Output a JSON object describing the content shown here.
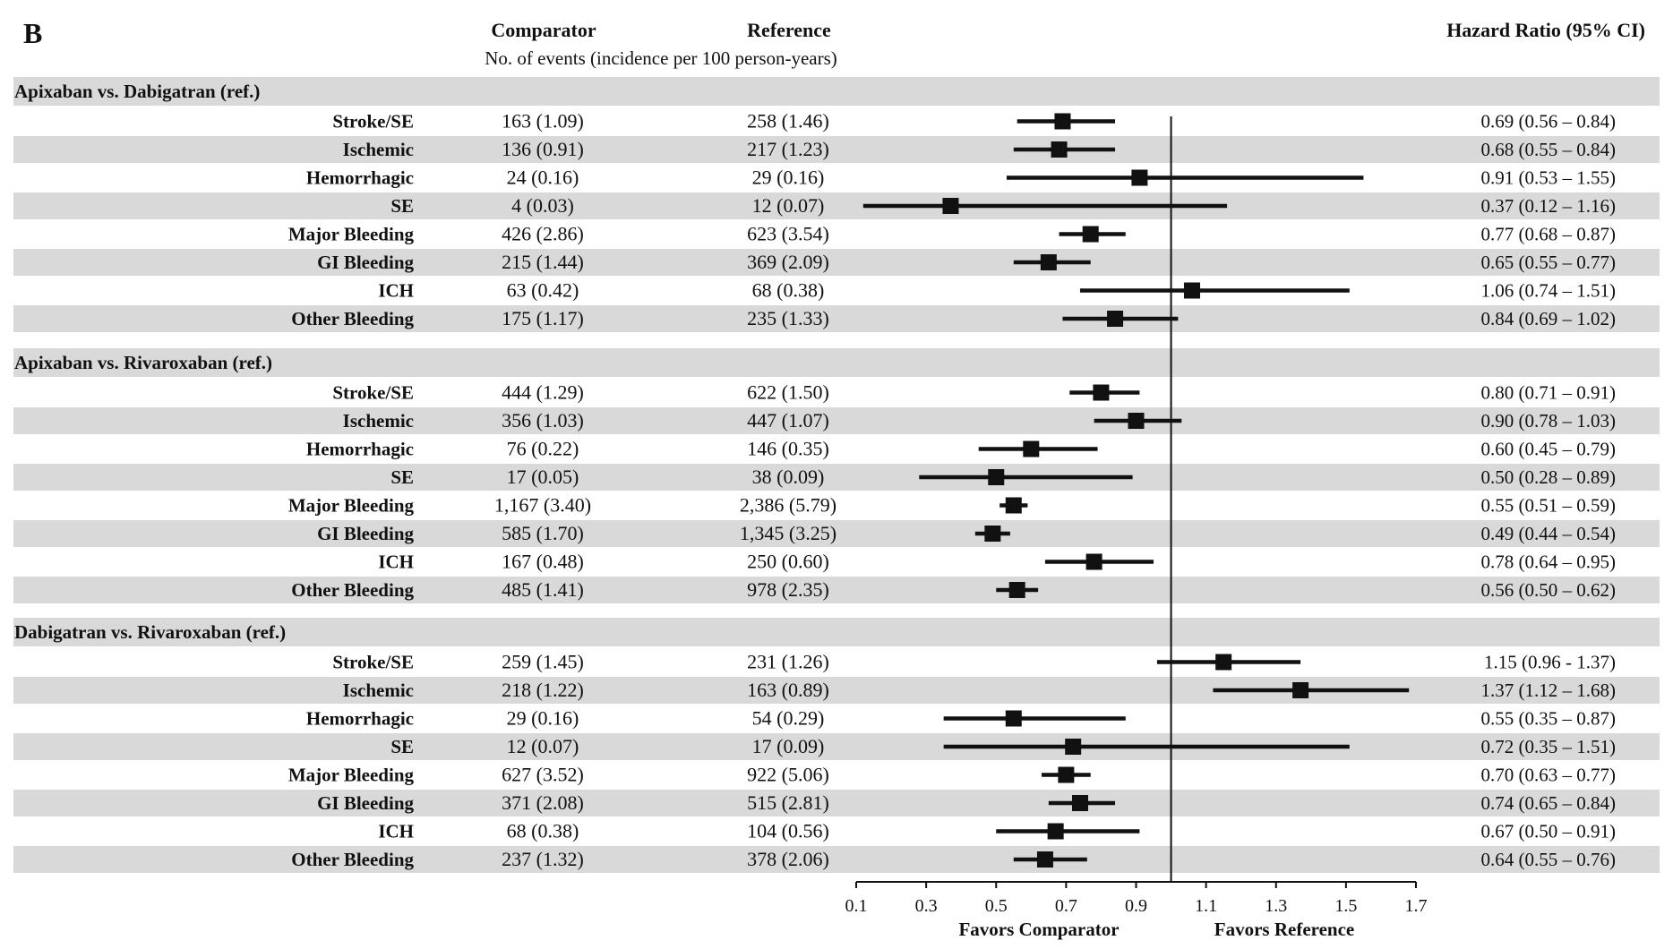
{
  "panel_label": "B",
  "headers": {
    "comparator": "Comparator",
    "reference": "Reference",
    "subheader": "No. of events (incidence per 100 person-years)",
    "hr": "Hazard Ratio (95% CI)"
  },
  "colors": {
    "band": "#d9d9d9",
    "ink": "#111111"
  },
  "chart_data": {
    "type": "forest",
    "xlim": [
      0.1,
      1.7
    ],
    "reference_line": 1.0,
    "ticks": [
      "0.1",
      "0.3",
      "0.5",
      "0.7",
      "0.9",
      "1.1",
      "1.3",
      "1.5",
      "1.7"
    ],
    "tick_values": [
      0.1,
      0.3,
      0.5,
      0.7,
      0.9,
      1.1,
      1.3,
      1.5,
      1.7
    ],
    "xlabel_left": "Favors Comparator",
    "xlabel_right": "Favors Reference",
    "groups": [
      {
        "title": "Apixaban vs. Dabigatran (ref.)",
        "rows": [
          {
            "label": "Stroke/SE",
            "comp": "163 (1.09)",
            "ref": "258 (1.46)",
            "hr_text": "0.69 (0.56 – 0.84)",
            "hr": 0.69,
            "lo": 0.56,
            "hi": 0.84
          },
          {
            "label": "Ischemic",
            "comp": "136 (0.91)",
            "ref": "217 (1.23)",
            "hr_text": "0.68 (0.55 – 0.84)",
            "hr": 0.68,
            "lo": 0.55,
            "hi": 0.84
          },
          {
            "label": "Hemorrhagic",
            "comp": "24 (0.16)",
            "ref": "29 (0.16)",
            "hr_text": "0.91 (0.53 – 1.55)",
            "hr": 0.91,
            "lo": 0.53,
            "hi": 1.55
          },
          {
            "label": "SE",
            "comp": "4 (0.03)",
            "ref": "12 (0.07)",
            "hr_text": "0.37 (0.12 – 1.16)",
            "hr": 0.37,
            "lo": 0.12,
            "hi": 1.16
          },
          {
            "label": "Major Bleeding",
            "comp": "426 (2.86)",
            "ref": "623 (3.54)",
            "hr_text": "0.77 (0.68 – 0.87)",
            "hr": 0.77,
            "lo": 0.68,
            "hi": 0.87
          },
          {
            "label": "GI Bleeding",
            "comp": "215 (1.44)",
            "ref": "369 (2.09)",
            "hr_text": "0.65 (0.55 – 0.77)",
            "hr": 0.65,
            "lo": 0.55,
            "hi": 0.77
          },
          {
            "label": "ICH",
            "comp": "63 (0.42)",
            "ref": "68 (0.38)",
            "hr_text": "1.06 (0.74 – 1.51)",
            "hr": 1.06,
            "lo": 0.74,
            "hi": 1.51
          },
          {
            "label": "Other Bleeding",
            "comp": "175 (1.17)",
            "ref": "235 (1.33)",
            "hr_text": "0.84 (0.69 – 1.02)",
            "hr": 0.84,
            "lo": 0.69,
            "hi": 1.02
          }
        ]
      },
      {
        "title": "Apixaban vs. Rivaroxaban (ref.)",
        "rows": [
          {
            "label": "Stroke/SE",
            "comp": "444 (1.29)",
            "ref": "622 (1.50)",
            "hr_text": "0.80 (0.71 – 0.91)",
            "hr": 0.8,
            "lo": 0.71,
            "hi": 0.91
          },
          {
            "label": "Ischemic",
            "comp": "356 (1.03)",
            "ref": "447 (1.07)",
            "hr_text": "0.90 (0.78 – 1.03)",
            "hr": 0.9,
            "lo": 0.78,
            "hi": 1.03
          },
          {
            "label": "Hemorrhagic",
            "comp": "76 (0.22)",
            "ref": "146 (0.35)",
            "hr_text": "0.60 (0.45 – 0.79)",
            "hr": 0.6,
            "lo": 0.45,
            "hi": 0.79
          },
          {
            "label": "SE",
            "comp": "17 (0.05)",
            "ref": "38 (0.09)",
            "hr_text": "0.50 (0.28 – 0.89)",
            "hr": 0.5,
            "lo": 0.28,
            "hi": 0.89
          },
          {
            "label": "Major Bleeding",
            "comp": "1,167 (3.40)",
            "ref": "2,386 (5.79)",
            "hr_text": "0.55 (0.51 – 0.59)",
            "hr": 0.55,
            "lo": 0.51,
            "hi": 0.59
          },
          {
            "label": "GI Bleeding",
            "comp": "585 (1.70)",
            "ref": "1,345 (3.25)",
            "hr_text": "0.49 (0.44 – 0.54)",
            "hr": 0.49,
            "lo": 0.44,
            "hi": 0.54
          },
          {
            "label": "ICH",
            "comp": "167 (0.48)",
            "ref": "250 (0.60)",
            "hr_text": "0.78 (0.64 – 0.95)",
            "hr": 0.78,
            "lo": 0.64,
            "hi": 0.95
          },
          {
            "label": "Other Bleeding",
            "comp": "485 (1.41)",
            "ref": "978 (2.35)",
            "hr_text": "0.56 (0.50 – 0.62)",
            "hr": 0.56,
            "lo": 0.5,
            "hi": 0.62
          }
        ]
      },
      {
        "title": "Dabigatran vs. Rivaroxaban (ref.)",
        "rows": [
          {
            "label": "Stroke/SE",
            "comp": "259 (1.45)",
            "ref": "231 (1.26)",
            "hr_text": "1.15 (0.96 - 1.37)",
            "hr": 1.15,
            "lo": 0.96,
            "hi": 1.37
          },
          {
            "label": "Ischemic",
            "comp": "218 (1.22)",
            "ref": "163 (0.89)",
            "hr_text": "1.37 (1.12 – 1.68)",
            "hr": 1.37,
            "lo": 1.12,
            "hi": 1.68
          },
          {
            "label": "Hemorrhagic",
            "comp": "29 (0.16)",
            "ref": "54 (0.29)",
            "hr_text": "0.55 (0.35 – 0.87)",
            "hr": 0.55,
            "lo": 0.35,
            "hi": 0.87
          },
          {
            "label": "SE",
            "comp": "12 (0.07)",
            "ref": "17 (0.09)",
            "hr_text": "0.72 (0.35 – 1.51)",
            "hr": 0.72,
            "lo": 0.35,
            "hi": 1.51
          },
          {
            "label": "Major Bleeding",
            "comp": "627 (3.52)",
            "ref": "922 (5.06)",
            "hr_text": "0.70 (0.63 – 0.77)",
            "hr": 0.7,
            "lo": 0.63,
            "hi": 0.77
          },
          {
            "label": "GI Bleeding",
            "comp": "371 (2.08)",
            "ref": "515 (2.81)",
            "hr_text": "0.74 (0.65 – 0.84)",
            "hr": 0.74,
            "lo": 0.65,
            "hi": 0.84
          },
          {
            "label": "ICH",
            "comp": "68 (0.38)",
            "ref": "104 (0.56)",
            "hr_text": "0.67 (0.50 – 0.91)",
            "hr": 0.67,
            "lo": 0.5,
            "hi": 0.91
          },
          {
            "label": "Other Bleeding",
            "comp": "237 (1.32)",
            "ref": "378 (2.06)",
            "hr_text": "0.64 (0.55 – 0.76)",
            "hr": 0.64,
            "lo": 0.55,
            "hi": 0.76
          }
        ]
      }
    ]
  }
}
